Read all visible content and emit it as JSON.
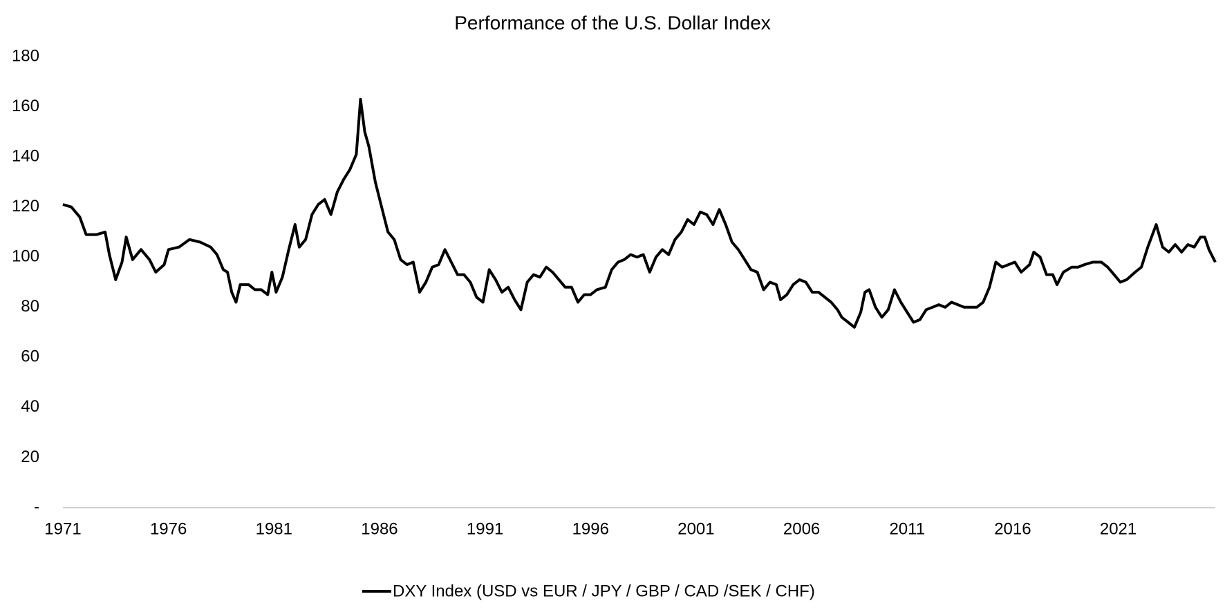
{
  "chart_data": {
    "type": "line",
    "title": "Performance of the U.S. Dollar Index",
    "x": [
      1971.0,
      1971.4,
      1971.8,
      1972.1,
      1972.6,
      1973.0,
      1973.2,
      1973.5,
      1973.8,
      1974.0,
      1974.3,
      1974.7,
      1975.1,
      1975.4,
      1975.8,
      1976.0,
      1976.5,
      1977.0,
      1977.5,
      1978.0,
      1978.3,
      1978.6,
      1978.8,
      1979.0,
      1979.2,
      1979.4,
      1979.8,
      1980.1,
      1980.4,
      1980.7,
      1980.9,
      1981.1,
      1981.4,
      1981.7,
      1982.0,
      1982.2,
      1982.5,
      1982.8,
      1983.1,
      1983.4,
      1983.7,
      1984.0,
      1984.3,
      1984.6,
      1984.9,
      1985.1,
      1985.3,
      1985.5,
      1985.8,
      1986.1,
      1986.4,
      1986.7,
      1987.0,
      1987.3,
      1987.6,
      1987.9,
      1988.2,
      1988.5,
      1988.8,
      1989.1,
      1989.4,
      1989.7,
      1990.0,
      1990.3,
      1990.6,
      1990.9,
      1991.2,
      1991.5,
      1991.8,
      1992.1,
      1992.4,
      1992.7,
      1993.0,
      1993.3,
      1993.6,
      1993.9,
      1994.2,
      1994.5,
      1994.8,
      1995.1,
      1995.4,
      1995.7,
      1996.0,
      1996.3,
      1996.7,
      1997.0,
      1997.3,
      1997.6,
      1997.9,
      1998.2,
      1998.5,
      1998.8,
      1999.1,
      1999.4,
      1999.7,
      2000.0,
      2000.3,
      2000.6,
      2000.9,
      2001.2,
      2001.5,
      2001.8,
      2002.1,
      2002.4,
      2002.7,
      2003.0,
      2003.3,
      2003.6,
      2003.9,
      2004.2,
      2004.5,
      2004.8,
      2005.0,
      2005.3,
      2005.6,
      2005.9,
      2006.2,
      2006.5,
      2006.8,
      2007.1,
      2007.4,
      2007.7,
      2007.9,
      2008.2,
      2008.5,
      2008.8,
      2009.0,
      2009.2,
      2009.5,
      2009.8,
      2010.1,
      2010.4,
      2010.7,
      2011.0,
      2011.3,
      2011.6,
      2011.9,
      2012.2,
      2012.5,
      2012.8,
      2013.1,
      2013.4,
      2013.7,
      2014.0,
      2014.3,
      2014.6,
      2014.9,
      2015.2,
      2015.5,
      2015.8,
      2016.1,
      2016.4,
      2016.8,
      2017.0,
      2017.3,
      2017.6,
      2017.9,
      2018.1,
      2018.4,
      2018.8,
      2019.1,
      2019.4,
      2019.8,
      2020.2,
      2020.5,
      2020.8,
      2021.1,
      2021.4,
      2021.8,
      2022.1,
      2022.4,
      2022.8,
      2023.1,
      2023.4,
      2023.7,
      2024.0,
      2024.3,
      2024.6,
      2024.9,
      2025.1,
      2025.3,
      2025.6
    ],
    "series": [
      {
        "name": "DXY Index (USD vs EUR / JPY / GBP / CAD /SEK / CHF)",
        "color": "#000000",
        "values": [
          121,
          120,
          116,
          109,
          109,
          110,
          101,
          91,
          98,
          108,
          99,
          103,
          99,
          94,
          97,
          103,
          104,
          107,
          106,
          104,
          101,
          95,
          94,
          86,
          82,
          89,
          89,
          87,
          87,
          85,
          94,
          86,
          92,
          103,
          113,
          104,
          107,
          117,
          121,
          123,
          117,
          126,
          131,
          135,
          141,
          163,
          150,
          144,
          130,
          120,
          110,
          107,
          99,
          97,
          98,
          86,
          90,
          96,
          97,
          103,
          98,
          93,
          93,
          90,
          84,
          82,
          95,
          91,
          86,
          88,
          83,
          79,
          90,
          93,
          92,
          96,
          94,
          91,
          88,
          88,
          82,
          85,
          85,
          87,
          88,
          95,
          98,
          99,
          101,
          100,
          101,
          94,
          100,
          103,
          101,
          107,
          110,
          115,
          113,
          118,
          117,
          113,
          119,
          113,
          106,
          103,
          99,
          95,
          94,
          87,
          90,
          89,
          83,
          85,
          89,
          91,
          90,
          86,
          86,
          84,
          82,
          79,
          76,
          74,
          72,
          78,
          86,
          87,
          80,
          76,
          79,
          87,
          82,
          78,
          74,
          75,
          79,
          80,
          81,
          80,
          82,
          81,
          80,
          80,
          80,
          82,
          88,
          98,
          96,
          97,
          98,
          94,
          97,
          102,
          100,
          93,
          93,
          89,
          94,
          96,
          96,
          97,
          98,
          98,
          96,
          93,
          90,
          91,
          94,
          96,
          104,
          113,
          104,
          102,
          105,
          102,
          105,
          104,
          108,
          108,
          103,
          98
        ]
      }
    ],
    "xlim": [
      1971,
      2025.6
    ],
    "xticks": [
      1971,
      1976,
      1981,
      1986,
      1991,
      1996,
      2001,
      2006,
      2011,
      2016,
      2021
    ],
    "ylim": [
      0,
      180
    ],
    "yticks": [
      {
        "value": 0,
        "label": "-"
      },
      20,
      40,
      60,
      80,
      100,
      120,
      140,
      160,
      180
    ],
    "grid": false,
    "legend": "bottom"
  }
}
